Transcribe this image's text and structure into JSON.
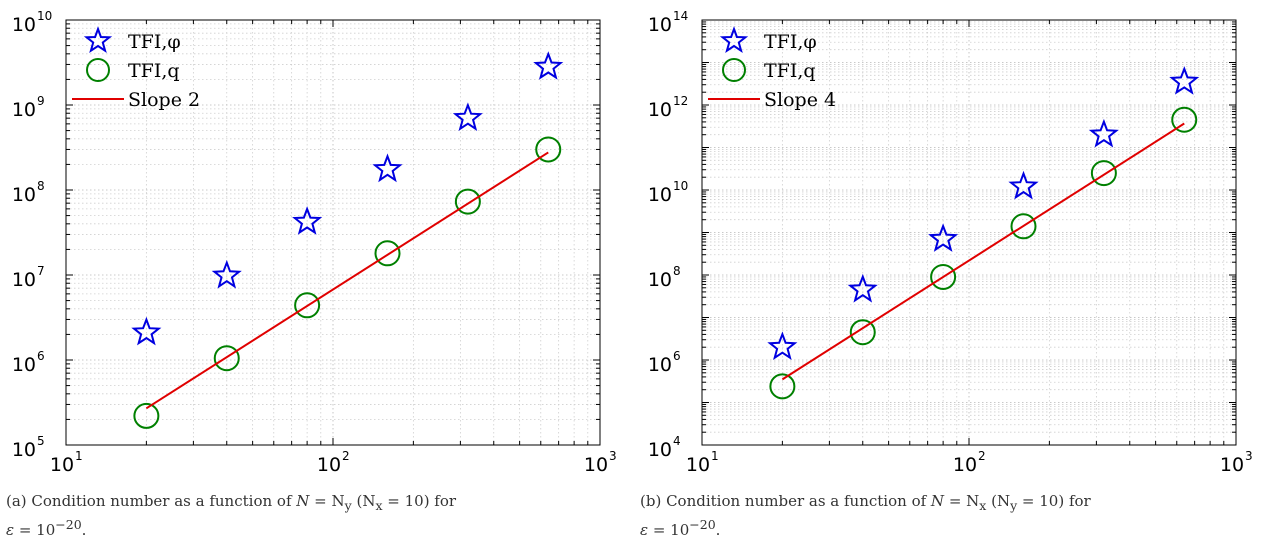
{
  "chart_data": [
    {
      "type": "scatter",
      "xscale": "log",
      "yscale": "log",
      "xlim": [
        10,
        1000
      ],
      "ylim": [
        100000,
        10000000000
      ],
      "grid": true,
      "legend_position": "top-left",
      "x_ticks": [
        {
          "base": "10",
          "exp": "1"
        },
        {
          "base": "10",
          "exp": "2"
        },
        {
          "base": "10",
          "exp": "3"
        }
      ],
      "y_ticks": [
        {
          "base": "10",
          "exp": "5"
        },
        {
          "base": "10",
          "exp": "6"
        },
        {
          "base": "10",
          "exp": "7"
        },
        {
          "base": "10",
          "exp": "8"
        },
        {
          "base": "10",
          "exp": "9"
        },
        {
          "base": "10",
          "exp": "10"
        }
      ],
      "series": [
        {
          "name": "TFI,φ",
          "marker": "star",
          "color": "#0000e0",
          "x": [
            20,
            40,
            80,
            160,
            320,
            640
          ],
          "y": [
            2100000,
            9800000,
            42000000,
            175000000,
            700000000,
            2800000000
          ]
        },
        {
          "name": "TFI,q",
          "marker": "circle",
          "color": "#008000",
          "x": [
            20,
            40,
            80,
            160,
            320,
            640
          ],
          "y": [
            220000,
            1050000,
            4400000,
            18000000,
            73000000,
            300000000
          ]
        },
        {
          "name": "Slope 2",
          "marker": "line",
          "color": "#e00000",
          "x": [
            20,
            640
          ],
          "y": [
            270000,
            276480000
          ]
        }
      ],
      "caption": "(a) Condition number as a function of N = N_y (N_x = 10) for ε = 10^−20."
    },
    {
      "type": "scatter",
      "xscale": "log",
      "yscale": "log",
      "xlim": [
        10,
        1000
      ],
      "ylim": [
        10000,
        100000000000000
      ],
      "grid": true,
      "legend_position": "top-left",
      "x_ticks": [
        {
          "base": "10",
          "exp": "1"
        },
        {
          "base": "10",
          "exp": "2"
        },
        {
          "base": "10",
          "exp": "3"
        }
      ],
      "y_ticks": [
        {
          "base": "10",
          "exp": "4"
        },
        {
          "base": "10",
          "exp": "6"
        },
        {
          "base": "10",
          "exp": "8"
        },
        {
          "base": "10",
          "exp": "10"
        },
        {
          "base": "10",
          "exp": "12"
        },
        {
          "base": "10",
          "exp": "14"
        }
      ],
      "series": [
        {
          "name": "TFI,φ",
          "marker": "star",
          "color": "#0000e0",
          "x": [
            20,
            40,
            80,
            160,
            320,
            640
          ],
          "y": [
            2000000,
            45000000,
            700000000,
            12000000000,
            200000000000,
            3500000000000
          ]
        },
        {
          "name": "TFI,q",
          "marker": "circle",
          "color": "#008000",
          "x": [
            20,
            40,
            80,
            160,
            320,
            640
          ],
          "y": [
            240000,
            4500000,
            90000000,
            1400000000,
            25000000000,
            450000000000
          ]
        },
        {
          "name": "Slope 4",
          "marker": "line",
          "color": "#e00000",
          "x": [
            20,
            640
          ],
          "y": [
            350000,
            367001600000
          ]
        }
      ],
      "caption": "(b) Condition number as a function of N = N_x (N_y = 10) for ε = 10^−20."
    }
  ],
  "captions": {
    "a": {
      "prefix": "(a) Condition number as a function of ",
      "N": "N",
      "eq": " = ",
      "Nsym": "N",
      "sub_main": "y",
      "paren_open": " (",
      "Nsym2": "N",
      "sub_paren": "x",
      "paren_eq": " = 10) for",
      "eps": "ε",
      "eps_eq": " = 10",
      "eps_exp": "−20",
      "end": "."
    },
    "b": {
      "prefix": "(b) Condition number as a function of ",
      "N": "N",
      "eq": " = ",
      "Nsym": "N",
      "sub_main": "x",
      "paren_open": " (",
      "Nsym2": "N",
      "sub_paren": "y",
      "paren_eq": " = 10) for",
      "eps": "ε",
      "eps_eq": " = 10",
      "eps_exp": "−20",
      "end": "."
    }
  }
}
